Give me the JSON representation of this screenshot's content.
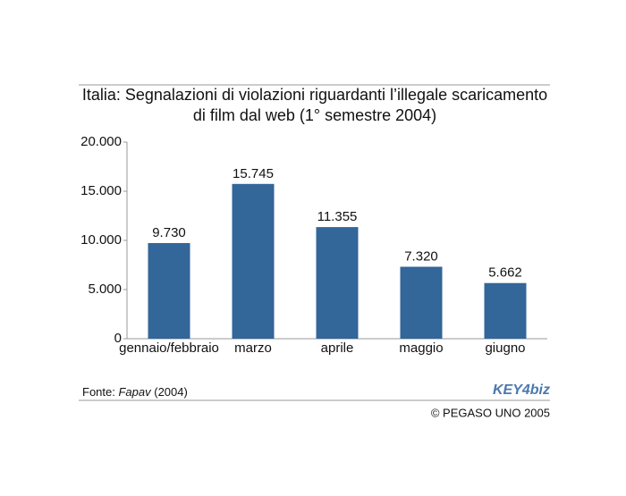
{
  "chart_data": {
    "type": "bar",
    "title": [
      "Italia: Segnalazioni di violazioni riguardanti l’illegale scaricamento",
      "di film dal web (1° semestre 2004)"
    ],
    "categories": [
      "gennaio/febbraio",
      "marzo",
      "aprile",
      "maggio",
      "giugno"
    ],
    "values": [
      9730,
      15745,
      11355,
      7320,
      5662
    ],
    "value_labels": [
      "9.730",
      "15.745",
      "11.355",
      "7.320",
      "5.662"
    ],
    "color": "#336699",
    "ylim": [
      0,
      20000
    ],
    "yticks": [
      0,
      {
        "value": 5000,
        "label": "5.000"
      },
      {
        "value": 10000,
        "label": "10.000"
      },
      {
        "value": 15000,
        "label": "15.000"
      },
      {
        "value": 20000,
        "label": "20.000"
      }
    ],
    "grid": false
  },
  "footer": {
    "source_label": "Fonte:",
    "source_name": "Fapav",
    "source_year": "(2004)",
    "logo": "KEY4biz",
    "copyright": "© PEGASO UNO 2005"
  }
}
